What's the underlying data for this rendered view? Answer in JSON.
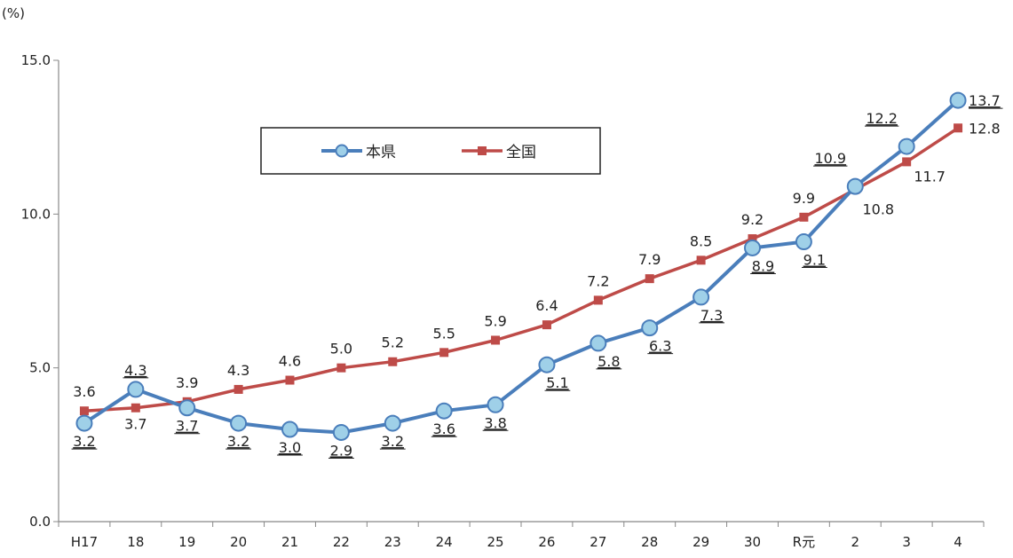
{
  "chart_data": {
    "type": "line",
    "unit_label": "(%)",
    "categories": [
      "H17",
      "18",
      "19",
      "20",
      "21",
      "22",
      "23",
      "24",
      "25",
      "26",
      "27",
      "28",
      "29",
      "30",
      "R元",
      "2",
      "3",
      "4"
    ],
    "ylim": [
      0,
      15
    ],
    "yticks": [
      "0.0",
      "5.0",
      "10.0",
      "15.0"
    ],
    "grid": false,
    "legend_position": "top-center",
    "series": [
      {
        "name": "本県",
        "color": "#4a7ebb",
        "marker": "circle",
        "marker_fill": "#9fd0e8",
        "values": [
          3.2,
          4.3,
          3.7,
          3.2,
          3.0,
          2.9,
          3.2,
          3.6,
          3.8,
          5.1,
          5.8,
          6.3,
          7.3,
          8.9,
          9.1,
          10.9,
          12.2,
          13.7
        ],
        "labels": [
          "3.2",
          "4.3",
          "3.7",
          "3.2",
          "3.0",
          "2.9",
          "3.2",
          "3.6",
          "3.8",
          "5.1",
          "5.8",
          "6.3",
          "7.3",
          "8.9",
          "9.1",
          "10.9",
          "12.2",
          "13.7"
        ]
      },
      {
        "name": "全国",
        "color": "#be4b48",
        "marker": "square",
        "marker_fill": "#be4b48",
        "values": [
          3.6,
          3.7,
          3.9,
          4.3,
          4.6,
          5.0,
          5.2,
          5.5,
          5.9,
          6.4,
          7.2,
          7.9,
          8.5,
          9.2,
          9.9,
          10.8,
          11.7,
          12.8
        ],
        "labels": [
          "3.6",
          "3.7",
          "3.9",
          "4.3",
          "4.6",
          "5.0",
          "5.2",
          "5.5",
          "5.9",
          "6.4",
          "7.2",
          "7.9",
          "8.5",
          "9.2",
          "9.9",
          "10.8",
          "11.7",
          "12.8"
        ]
      }
    ]
  }
}
